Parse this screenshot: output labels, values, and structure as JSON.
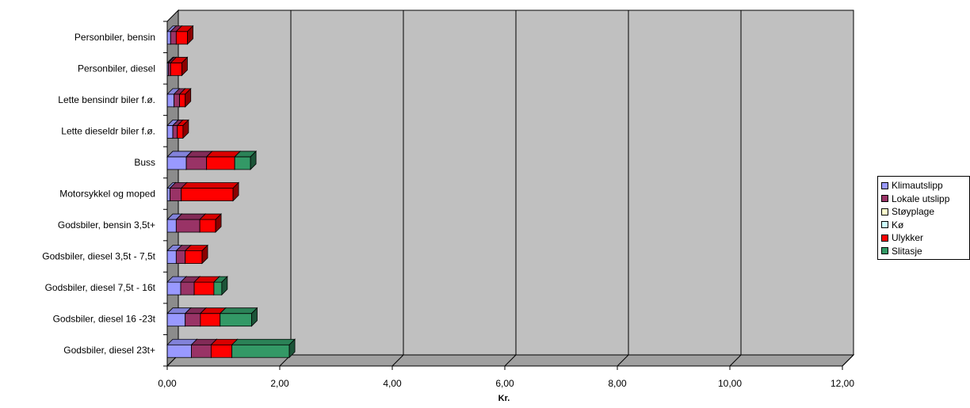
{
  "chart_data": {
    "type": "bar",
    "orientation": "horizontal",
    "stacked": true,
    "three_d": true,
    "categories": [
      "Personbiler, bensin",
      "Personbiler, diesel",
      "Lette bensindr biler f.ø.",
      "Lette dieseldr biler f.ø.",
      "Buss",
      "Motorsykkel og moped",
      "Godsbiler, bensin  3,5t+",
      "Godsbiler, diesel 3,5t - 7,5t",
      "Godsbiler, diesel 7,5t - 16t",
      "Godsbiler, diesel 16 -23t",
      "Godsbiler, diesel 23t+"
    ],
    "series": [
      {
        "name": "Klimautslipp",
        "color": "#9999ff",
        "values": [
          0.06,
          0.02,
          0.12,
          0.1,
          0.34,
          0.05,
          0.16,
          0.16,
          0.24,
          0.32,
          0.43
        ]
      },
      {
        "name": "Lokale utslipp",
        "color": "#993366",
        "values": [
          0.1,
          0.04,
          0.1,
          0.08,
          0.36,
          0.2,
          0.42,
          0.16,
          0.24,
          0.27,
          0.35
        ]
      },
      {
        "name": "Støyplage",
        "color": "#ffffcc",
        "values": [
          0.0,
          0.0,
          0.0,
          0.0,
          0.0,
          0.0,
          0.0,
          0.0,
          0.0,
          0.0,
          0.0
        ]
      },
      {
        "name": "Kø",
        "color": "#ccffff",
        "values": [
          0.0,
          0.0,
          0.0,
          0.0,
          0.0,
          0.0,
          0.0,
          0.0,
          0.0,
          0.0,
          0.0
        ]
      },
      {
        "name": "Ulykker",
        "color": "#ff0000",
        "values": [
          0.2,
          0.2,
          0.1,
          0.1,
          0.5,
          0.92,
          0.28,
          0.3,
          0.35,
          0.35,
          0.37
        ]
      },
      {
        "name": "Slitasje",
        "color": "#339966",
        "values": [
          0.0,
          0.0,
          0.0,
          0.0,
          0.28,
          0.0,
          0.0,
          0.0,
          0.14,
          0.56,
          1.02
        ]
      }
    ],
    "xlabel": "Kr.",
    "ylabel": "",
    "title": "",
    "xlim": [
      0,
      12
    ],
    "xticks": [
      "0,00",
      "2,00",
      "4,00",
      "6,00",
      "8,00",
      "10,00",
      "12,00"
    ],
    "grid": true,
    "plot_background": "#c0c0c0",
    "legend_position": "right"
  }
}
